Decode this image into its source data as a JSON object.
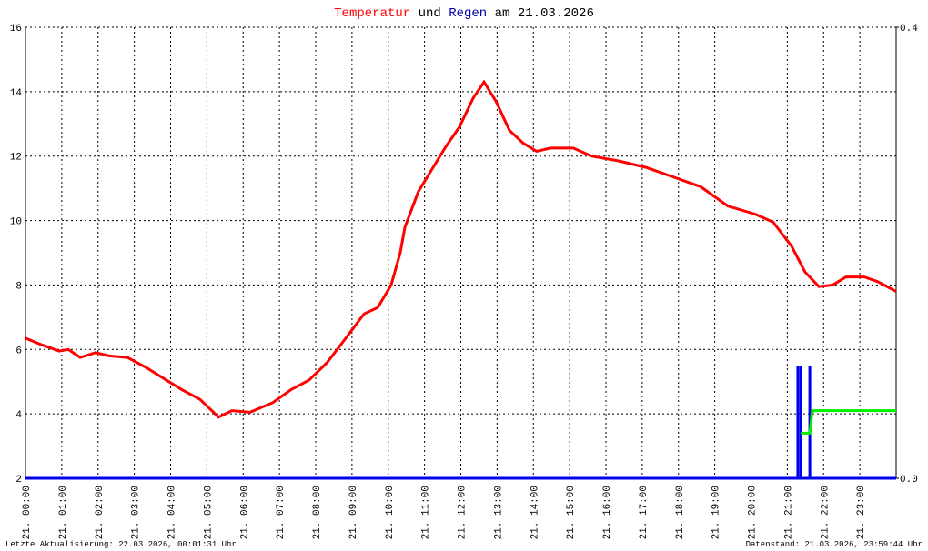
{
  "chart_data": {
    "type": "line",
    "title_connector": "und",
    "title_date": "am 21.03.2026",
    "footer_left": "Letzte Aktualisierung: 22.03.2026, 00:01:31 Uhr",
    "footer_right": "Datenstand: 21.03.2026, 23:59:44 Uhr",
    "xlim": [
      0,
      24
    ],
    "xticks": [
      {
        "value": 0,
        "label": "21. 00:00"
      },
      {
        "value": 1,
        "label": "21. 01:00"
      },
      {
        "value": 2,
        "label": "21. 02:00"
      },
      {
        "value": 3,
        "label": "21. 03:00"
      },
      {
        "value": 4,
        "label": "21. 04:00"
      },
      {
        "value": 5,
        "label": "21. 05:00"
      },
      {
        "value": 6,
        "label": "21. 06:00"
      },
      {
        "value": 7,
        "label": "21. 07:00"
      },
      {
        "value": 8,
        "label": "21. 08:00"
      },
      {
        "value": 9,
        "label": "21. 09:00"
      },
      {
        "value": 10,
        "label": "21. 10:00"
      },
      {
        "value": 11,
        "label": "21. 11:00"
      },
      {
        "value": 12,
        "label": "21. 12:00"
      },
      {
        "value": 13,
        "label": "21. 13:00"
      },
      {
        "value": 14,
        "label": "21. 14:00"
      },
      {
        "value": 15,
        "label": "21. 15:00"
      },
      {
        "value": 16,
        "label": "21. 16:00"
      },
      {
        "value": 17,
        "label": "21. 17:00"
      },
      {
        "value": 18,
        "label": "21. 18:00"
      },
      {
        "value": 19,
        "label": "21. 19:00"
      },
      {
        "value": 20,
        "label": "21. 20:00"
      },
      {
        "value": 21,
        "label": "21. 21:00"
      },
      {
        "value": 22,
        "label": "21. 22:00"
      },
      {
        "value": 23,
        "label": "21. 23:00"
      }
    ],
    "ylim": [
      2,
      16
    ],
    "yticks": [
      2,
      4,
      6,
      8,
      10,
      12,
      14,
      16
    ],
    "y2lim": [
      0,
      0.4
    ],
    "y2ticks": [
      {
        "value": 0,
        "label": "0.0"
      },
      {
        "value": 0.4,
        "label": "0.4"
      }
    ],
    "grid": true,
    "series": [
      {
        "name": "Temperatur",
        "color": "#ff0000",
        "kind": "line",
        "x": [
          0,
          0.43,
          0.93,
          1.18,
          1.51,
          1.93,
          2.31,
          2.81,
          3.31,
          3.81,
          4.31,
          4.81,
          5.32,
          5.69,
          6.19,
          6.82,
          7.32,
          7.82,
          8.32,
          8.83,
          9.33,
          9.71,
          10.08,
          10.33,
          10.46,
          10.83,
          11.21,
          11.59,
          11.96,
          12.34,
          12.64,
          12.97,
          13.34,
          13.72,
          14.09,
          14.47,
          15.1,
          15.6,
          16.35,
          17.1,
          17.86,
          18.61,
          19.36,
          20.11,
          20.61,
          21.12,
          21.49,
          21.87,
          22.25,
          22.62,
          23.12,
          23.5,
          24
        ],
        "values": [
          6.35,
          6.15,
          5.95,
          6.0,
          5.75,
          5.9,
          5.8,
          5.75,
          5.45,
          5.1,
          4.75,
          4.45,
          3.9,
          4.1,
          4.05,
          4.35,
          4.75,
          5.05,
          5.6,
          6.35,
          7.1,
          7.3,
          8.0,
          9.0,
          9.8,
          10.9,
          11.6,
          12.3,
          12.9,
          13.8,
          14.3,
          13.7,
          12.8,
          12.4,
          12.15,
          12.25,
          12.25,
          12.0,
          11.85,
          11.65,
          11.35,
          11.05,
          10.45,
          10.2,
          9.95,
          9.2,
          8.4,
          7.95,
          8.0,
          8.25,
          8.25,
          8.1,
          7.8
        ]
      },
      {
        "name": "Regen",
        "color": "#0000ee",
        "kind": "bar",
        "axis": "y2",
        "x": [
          21.29,
          21.37,
          21.62
        ],
        "values": [
          0.1,
          0.1,
          0.1
        ]
      },
      {
        "color": "#00ee00",
        "kind": "line",
        "axis": "y2",
        "x": [
          21.37,
          21.62,
          21.69,
          24
        ],
        "values": [
          0.04,
          0.04,
          0.06,
          0.06
        ]
      }
    ]
  }
}
